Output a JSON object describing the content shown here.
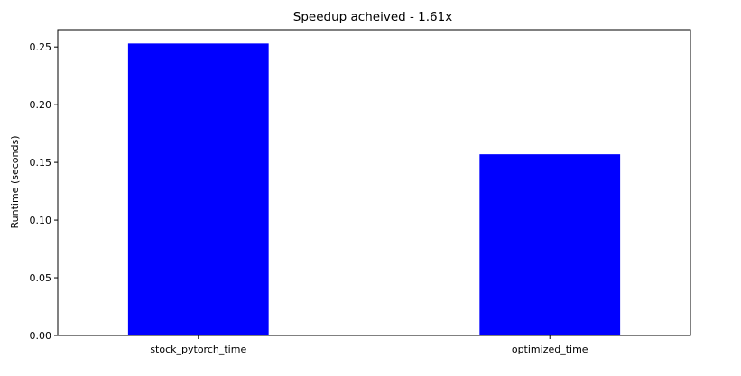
{
  "chart_data": {
    "type": "bar",
    "title": "Speedup acheived - 1.61x",
    "xlabel": "",
    "ylabel": "Runtime (seconds)",
    "categories": [
      "stock_pytorch_time",
      "optimized_time"
    ],
    "values": [
      0.253,
      0.157
    ],
    "ylim": [
      0,
      0.265
    ],
    "yticks": [
      0.0,
      0.05,
      0.1,
      0.15,
      0.2,
      0.25
    ],
    "ytick_labels": [
      "0.00",
      "0.05",
      "0.10",
      "0.15",
      "0.20",
      "0.25"
    ],
    "bar_color": "#0000ff",
    "grid": false,
    "legend": "none"
  }
}
